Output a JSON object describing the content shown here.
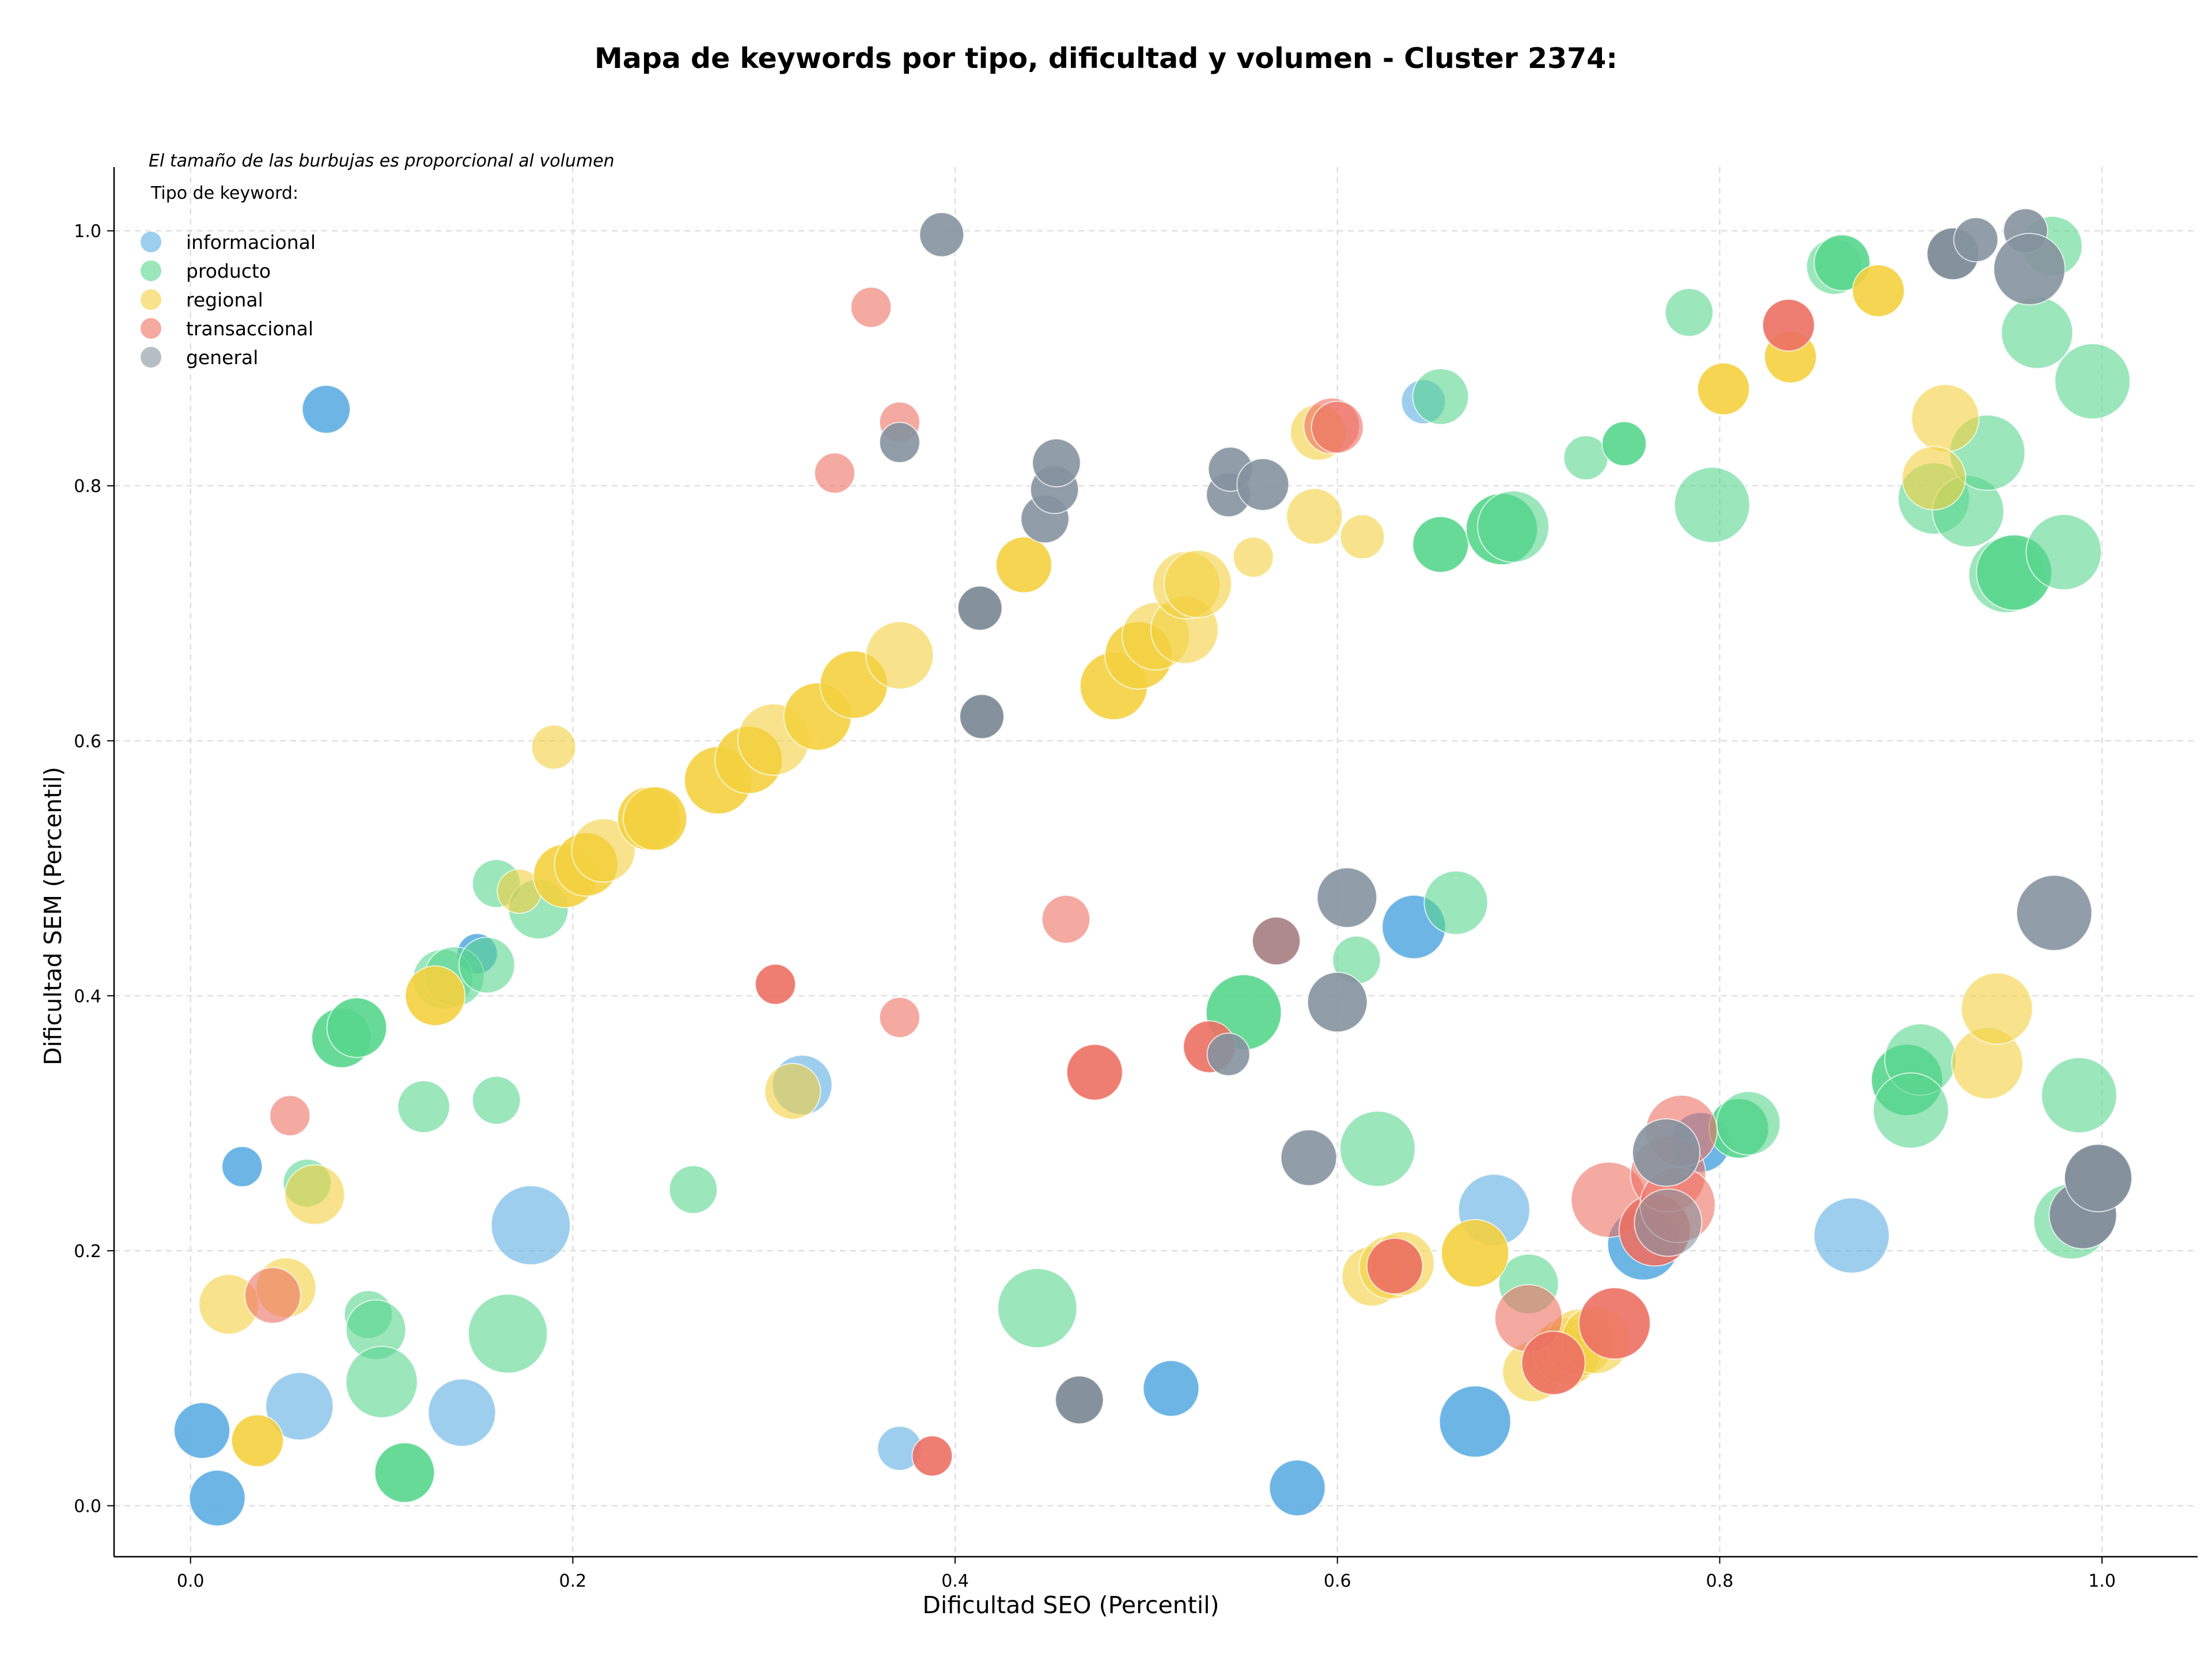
{
  "chart_data": {
    "type": "scatter",
    "title": "Mapa de keywords por tipo, dificultad y volumen - Cluster 2374:",
    "xlabel": "Dificultad SEO (Percentil)",
    "ylabel": "Dificultad SEM (Percentil)",
    "xlim": [
      -0.04,
      1.05
    ],
    "ylim": [
      -0.04,
      1.05
    ],
    "xticks": [
      "0.0",
      "0.2",
      "0.4",
      "0.6",
      "0.8",
      "1.0"
    ],
    "yticks": [
      "0.0",
      "0.2",
      "0.4",
      "0.6",
      "0.8",
      "1.0"
    ],
    "grid": true,
    "note": "El tamaño de las burbujas es proporcional al volumen",
    "legend_title": "Tipo de keyword:",
    "legend_position": "top-left",
    "series": [
      {
        "name": "informacional",
        "color": "#5dade2",
        "points": [
          [
            0.071,
            0.86,
            0.35,
            0.9
          ],
          [
            0.027,
            0.266,
            0.25,
            0.9
          ],
          [
            0.15,
            0.433,
            0.25,
            0.9
          ],
          [
            0.006,
            0.059,
            0.45,
            0.9
          ],
          [
            0.014,
            0.006,
            0.45,
            0.9
          ],
          [
            0.057,
            0.078,
            0.6,
            0.6
          ],
          [
            0.142,
            0.073,
            0.6,
            0.6
          ],
          [
            0.178,
            0.22,
            0.75,
            0.6
          ],
          [
            0.32,
            0.33,
            0.5,
            0.6
          ],
          [
            0.371,
            0.045,
            0.3,
            0.6
          ],
          [
            0.513,
            0.092,
            0.45,
            0.9
          ],
          [
            0.579,
            0.014,
            0.45,
            0.9
          ],
          [
            0.64,
            0.454,
            0.55,
            0.9
          ],
          [
            0.672,
            0.066,
            0.65,
            0.9
          ],
          [
            0.682,
            0.232,
            0.65,
            0.6
          ],
          [
            0.76,
            0.205,
            0.65,
            0.9
          ],
          [
            0.79,
            0.285,
            0.5,
            0.9
          ],
          [
            0.869,
            0.212,
            0.7,
            0.6
          ],
          [
            0.645,
            0.866,
            0.3,
            0.6
          ]
        ]
      },
      {
        "name": "producto",
        "color": "#58d68d",
        "points": [
          [
            0.079,
            0.367,
            0.5,
            0.9
          ],
          [
            0.087,
            0.375,
            0.5,
            0.9
          ],
          [
            0.061,
            0.253,
            0.35,
            0.6
          ],
          [
            0.093,
            0.15,
            0.35,
            0.6
          ],
          [
            0.097,
            0.138,
            0.5,
            0.6
          ],
          [
            0.1,
            0.097,
            0.65,
            0.6
          ],
          [
            0.112,
            0.026,
            0.5,
            0.9
          ],
          [
            0.122,
            0.313,
            0.4,
            0.6
          ],
          [
            0.132,
            0.413,
            0.5,
            0.6
          ],
          [
            0.138,
            0.415,
            0.5,
            0.6
          ],
          [
            0.155,
            0.424,
            0.45,
            0.6
          ],
          [
            0.16,
            0.488,
            0.35,
            0.6
          ],
          [
            0.16,
            0.318,
            0.35,
            0.6
          ],
          [
            0.166,
            0.135,
            0.75,
            0.6
          ],
          [
            0.182,
            0.468,
            0.5,
            0.6
          ],
          [
            0.263,
            0.248,
            0.35,
            0.6
          ],
          [
            0.443,
            0.155,
            0.75,
            0.6
          ],
          [
            0.551,
            0.387,
            0.7,
            0.9
          ],
          [
            0.61,
            0.428,
            0.35,
            0.6
          ],
          [
            0.621,
            0.28,
            0.7,
            0.6
          ],
          [
            0.662,
            0.473,
            0.55,
            0.6
          ],
          [
            0.654,
            0.754,
            0.45,
            0.9
          ],
          [
            0.654,
            0.87,
            0.45,
            0.6
          ],
          [
            0.686,
            0.766,
            0.65,
            0.9
          ],
          [
            0.692,
            0.768,
            0.65,
            0.6
          ],
          [
            0.7,
            0.174,
            0.5,
            0.6
          ],
          [
            0.73,
            0.822,
            0.3,
            0.6
          ],
          [
            0.75,
            0.833,
            0.3,
            0.9
          ],
          [
            0.784,
            0.936,
            0.35,
            0.6
          ],
          [
            0.796,
            0.785,
            0.7,
            0.6
          ],
          [
            0.81,
            0.296,
            0.5,
            0.9
          ],
          [
            0.815,
            0.3,
            0.55,
            0.6
          ],
          [
            0.86,
            0.972,
            0.45,
            0.6
          ],
          [
            0.864,
            0.975,
            0.45,
            0.9
          ],
          [
            0.898,
            0.334,
            0.65,
            0.9
          ],
          [
            0.905,
            0.35,
            0.65,
            0.6
          ],
          [
            0.9,
            0.31,
            0.7,
            0.6
          ],
          [
            0.912,
            0.79,
            0.65,
            0.6
          ],
          [
            0.93,
            0.78,
            0.65,
            0.6
          ],
          [
            0.94,
            0.826,
            0.7,
            0.6
          ],
          [
            0.95,
            0.73,
            0.7,
            0.6
          ],
          [
            0.954,
            0.732,
            0.7,
            0.9
          ],
          [
            0.966,
            0.92,
            0.65,
            0.6
          ],
          [
            0.974,
            0.988,
            0.5,
            0.6
          ],
          [
            0.98,
            0.748,
            0.7,
            0.6
          ],
          [
            0.984,
            0.223,
            0.7,
            0.6
          ],
          [
            0.988,
            0.322,
            0.7,
            0.6
          ],
          [
            0.995,
            0.882,
            0.7,
            0.6
          ]
        ]
      },
      {
        "name": "regional",
        "color": "#f4d03f",
        "points": [
          [
            0.02,
            0.158,
            0.5,
            0.6
          ],
          [
            0.035,
            0.051,
            0.4,
            0.9
          ],
          [
            0.05,
            0.171,
            0.5,
            0.6
          ],
          [
            0.065,
            0.244,
            0.5,
            0.6
          ],
          [
            0.128,
            0.4,
            0.5,
            0.9
          ],
          [
            0.172,
            0.482,
            0.3,
            0.6
          ],
          [
            0.19,
            0.595,
            0.3,
            0.6
          ],
          [
            0.196,
            0.494,
            0.55,
            0.9
          ],
          [
            0.207,
            0.503,
            0.55,
            0.9
          ],
          [
            0.216,
            0.514,
            0.55,
            0.6
          ],
          [
            0.24,
            0.539,
            0.55,
            0.9
          ],
          [
            0.243,
            0.539,
            0.55,
            0.9
          ],
          [
            0.276,
            0.569,
            0.6,
            0.9
          ],
          [
            0.292,
            0.585,
            0.6,
            0.9
          ],
          [
            0.305,
            0.601,
            0.65,
            0.6
          ],
          [
            0.328,
            0.619,
            0.6,
            0.9
          ],
          [
            0.347,
            0.644,
            0.6,
            0.9
          ],
          [
            0.371,
            0.667,
            0.6,
            0.6
          ],
          [
            0.315,
            0.325,
            0.45,
            0.6
          ],
          [
            0.436,
            0.738,
            0.45,
            0.9
          ],
          [
            0.483,
            0.643,
            0.6,
            0.9
          ],
          [
            0.496,
            0.667,
            0.6,
            0.9
          ],
          [
            0.505,
            0.682,
            0.6,
            0.6
          ],
          [
            0.52,
            0.687,
            0.6,
            0.6
          ],
          [
            0.521,
            0.722,
            0.6,
            0.6
          ],
          [
            0.527,
            0.723,
            0.6,
            0.6
          ],
          [
            0.556,
            0.744,
            0.25,
            0.6
          ],
          [
            0.588,
            0.776,
            0.45,
            0.6
          ],
          [
            0.59,
            0.842,
            0.45,
            0.6
          ],
          [
            0.613,
            0.76,
            0.3,
            0.6
          ],
          [
            0.618,
            0.18,
            0.5,
            0.6
          ],
          [
            0.628,
            0.187,
            0.55,
            0.6
          ],
          [
            0.634,
            0.19,
            0.55,
            0.6
          ],
          [
            0.672,
            0.198,
            0.6,
            0.9
          ],
          [
            0.702,
            0.105,
            0.5,
            0.6
          ],
          [
            0.715,
            0.115,
            0.6,
            0.6
          ],
          [
            0.72,
            0.121,
            0.6,
            0.6
          ],
          [
            0.727,
            0.128,
            0.6,
            0.6
          ],
          [
            0.735,
            0.13,
            0.6,
            0.6
          ],
          [
            0.802,
            0.876,
            0.4,
            0.9
          ],
          [
            0.837,
            0.901,
            0.4,
            0.9
          ],
          [
            0.883,
            0.953,
            0.4,
            0.9
          ],
          [
            0.918,
            0.853,
            0.6,
            0.6
          ],
          [
            0.912,
            0.806,
            0.55,
            0.6
          ],
          [
            0.94,
            0.347,
            0.65,
            0.6
          ],
          [
            0.945,
            0.39,
            0.65,
            0.6
          ]
        ]
      },
      {
        "name": "transaccional",
        "color": "#ec7063",
        "points": [
          [
            0.052,
            0.306,
            0.25,
            0.6
          ],
          [
            0.043,
            0.165,
            0.45,
            0.6
          ],
          [
            0.306,
            0.409,
            0.25,
            0.9
          ],
          [
            0.337,
            0.81,
            0.25,
            0.6
          ],
          [
            0.356,
            0.94,
            0.25,
            0.6
          ],
          [
            0.371,
            0.85,
            0.25,
            0.6
          ],
          [
            0.371,
            0.383,
            0.25,
            0.6
          ],
          [
            0.388,
            0.039,
            0.25,
            0.9
          ],
          [
            0.458,
            0.46,
            0.35,
            0.6
          ],
          [
            0.473,
            0.34,
            0.45,
            0.9
          ],
          [
            0.533,
            0.36,
            0.4,
            0.9
          ],
          [
            0.597,
            0.847,
            0.45,
            0.6
          ],
          [
            0.6,
            0.846,
            0.4,
            0.6
          ],
          [
            0.63,
            0.188,
            0.45,
            0.9
          ],
          [
            0.7,
            0.147,
            0.6,
            0.6
          ],
          [
            0.713,
            0.112,
            0.55,
            0.9
          ],
          [
            0.742,
            0.24,
            0.7,
            0.6
          ],
          [
            0.745,
            0.143,
            0.65,
            0.9
          ],
          [
            0.766,
            0.216,
            0.65,
            0.9
          ],
          [
            0.773,
            0.26,
            0.7,
            0.6
          ],
          [
            0.778,
            0.236,
            0.7,
            0.6
          ],
          [
            0.78,
            0.294,
            0.65,
            0.6
          ],
          [
            0.836,
            0.926,
            0.4,
            0.9
          ],
          [
            0.568,
            0.443,
            0.35,
            0.9
          ]
        ]
      },
      {
        "name": "general",
        "color": "#85929e",
        "points": [
          [
            0.393,
            0.997,
            0.3,
            0.9
          ],
          [
            0.371,
            0.834,
            0.25,
            0.9
          ],
          [
            0.413,
            0.704,
            0.3,
            1.0
          ],
          [
            0.414,
            0.619,
            0.3,
            1.0
          ],
          [
            0.447,
            0.774,
            0.35,
            0.9
          ],
          [
            0.452,
            0.797,
            0.35,
            0.9
          ],
          [
            0.453,
            0.818,
            0.35,
            0.9
          ],
          [
            0.465,
            0.083,
            0.35,
            1.0
          ],
          [
            0.543,
            0.793,
            0.3,
            0.9
          ],
          [
            0.544,
            0.813,
            0.3,
            0.9
          ],
          [
            0.561,
            0.801,
            0.4,
            0.9
          ],
          [
            0.543,
            0.354,
            0.28,
            0.9
          ],
          [
            0.568,
            0.443,
            0.35,
            0.6
          ],
          [
            0.585,
            0.273,
            0.45,
            0.9
          ],
          [
            0.6,
            0.395,
            0.5,
            0.9
          ],
          [
            0.605,
            0.477,
            0.5,
            0.9
          ],
          [
            0.772,
            0.277,
            0.6,
            0.9
          ],
          [
            0.773,
            0.222,
            0.6,
            0.6
          ],
          [
            0.922,
            0.982,
            0.4,
            1.0
          ],
          [
            0.934,
            0.993,
            0.3,
            0.9
          ],
          [
            0.96,
            1.0,
            0.3,
            0.9
          ],
          [
            0.962,
            0.97,
            0.65,
            0.9
          ],
          [
            0.975,
            0.465,
            0.7,
            0.9
          ],
          [
            0.99,
            0.228,
            0.6,
            1.0
          ],
          [
            0.998,
            0.257,
            0.6,
            1.0
          ]
        ]
      }
    ]
  }
}
